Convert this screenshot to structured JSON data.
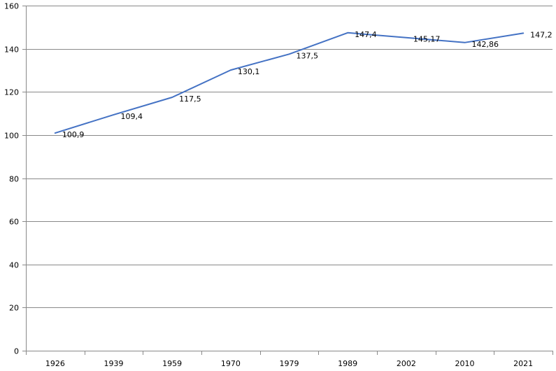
{
  "chart_data": {
    "type": "line",
    "title": "",
    "xlabel": "",
    "ylabel": "",
    "categories": [
      "1926",
      "1939",
      "1959",
      "1970",
      "1979",
      "1989",
      "2002",
      "2010",
      "2021"
    ],
    "series": [
      {
        "values": [
          100.9,
          109.4,
          117.5,
          130.1,
          137.5,
          147.4,
          145.17,
          142.86,
          147.2
        ],
        "data_labels": [
          "100,9",
          "109,4",
          "117,5",
          "130,1",
          "137,5",
          "147,4",
          "145,17",
          "142,86",
          "147,2"
        ],
        "color": "#4472C4"
      }
    ],
    "ylim": [
      0,
      160
    ],
    "y_ticks": [
      0,
      20,
      40,
      60,
      80,
      100,
      120,
      140,
      160
    ],
    "y_tick_labels": [
      "0",
      "20",
      "40",
      "60",
      "80",
      "100",
      "120",
      "140",
      "160"
    ],
    "grid": true,
    "legend": "none",
    "colors": {
      "line": "#4472C4",
      "grid": "#898989",
      "axis": "#898989",
      "text": "#000000"
    }
  }
}
